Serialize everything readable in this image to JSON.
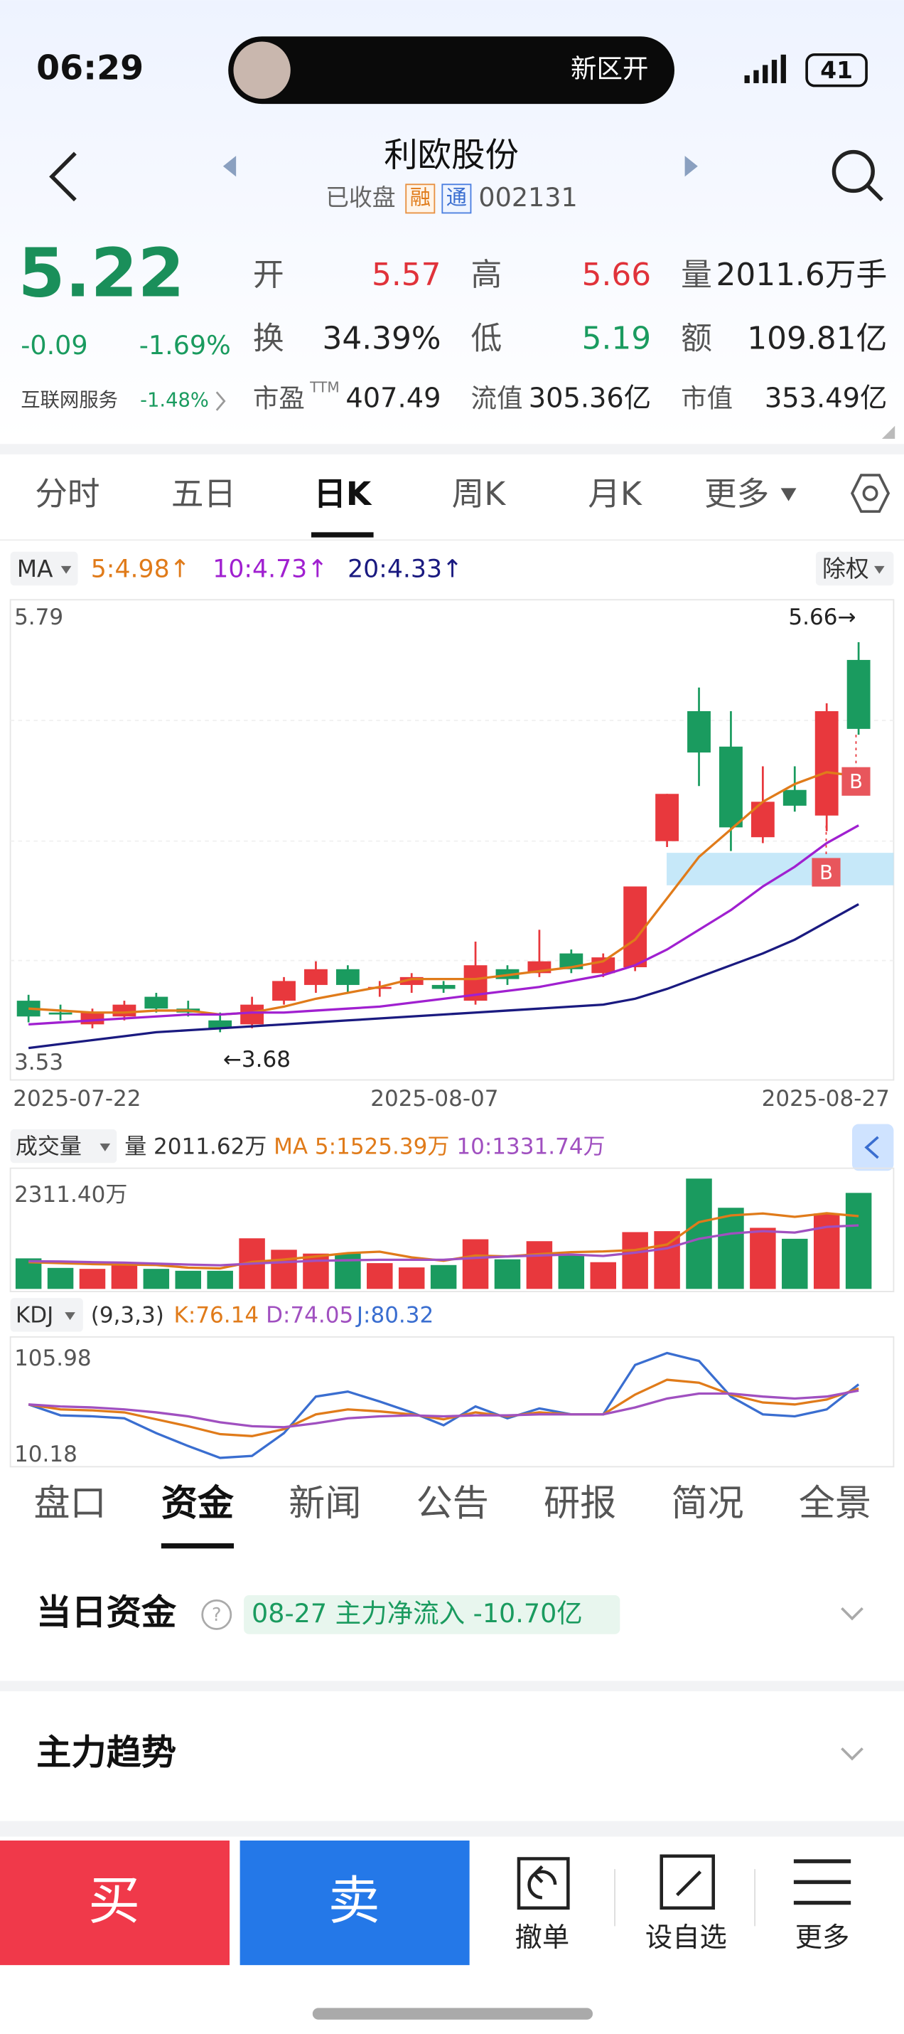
{
  "status": {
    "time": "06:29",
    "notification": "新区开",
    "battery": "41"
  },
  "header": {
    "name": "利欧股份",
    "state": "已收盘",
    "tags": [
      "融",
      "通"
    ],
    "code": "002131"
  },
  "quote": {
    "price": "5.22",
    "change": "-0.09",
    "percent": "-1.69%",
    "sector": "互联网服务",
    "sector_percent": "-1.48%",
    "fields": [
      [
        {
          "label": "开",
          "value": "5.57",
          "color": "#e0323a"
        },
        {
          "label": "高",
          "value": "5.66",
          "color": "#e0323a"
        },
        {
          "label": "量",
          "value": "2011.6万手",
          "color": "#222222"
        }
      ],
      [
        {
          "label": "换",
          "value": "34.39%",
          "color": "#222222"
        },
        {
          "label": "低",
          "value": "5.19",
          "color": "#1a9b5f"
        },
        {
          "label": "额",
          "value": "109.81亿",
          "color": "#222222"
        }
      ],
      [
        {
          "label": "市盈",
          "sup": "TTM",
          "value": "407.49",
          "color": "#222222"
        },
        {
          "label": "流值",
          "value": "305.36亿",
          "color": "#222222"
        },
        {
          "label": "市值",
          "value": "353.49亿",
          "color": "#222222"
        }
      ]
    ]
  },
  "tabs": {
    "items": [
      "分时",
      "五日",
      "日K",
      "周K",
      "月K",
      "更多"
    ],
    "active": 2
  },
  "ma_legend": {
    "label": "MA",
    "items": [
      {
        "text": "5:4.98↑",
        "color": "#e07b1a"
      },
      {
        "text": "10:4.73↑",
        "color": "#a020d0"
      },
      {
        "text": "20:4.33↑",
        "color": "#1a1a80"
      }
    ],
    "adjust": "除权"
  },
  "price_chart": {
    "ylim": [
      3.53,
      5.79
    ],
    "high_note": "5.66→",
    "low_note": "←3.68",
    "signal": "B",
    "dates": [
      "2025-07-22",
      "2025-08-07",
      "2025-08-27"
    ],
    "up_color": "#e8383d",
    "down_color": "#1a9b5f",
    "candles": [
      [
        3.84,
        3.76,
        3.87,
        3.73
      ],
      [
        3.78,
        3.77,
        3.82,
        3.74
      ],
      [
        3.72,
        3.78,
        3.8,
        3.7
      ],
      [
        3.76,
        3.82,
        3.84,
        3.74
      ],
      [
        3.86,
        3.8,
        3.88,
        3.78
      ],
      [
        3.8,
        3.78,
        3.84,
        3.76
      ],
      [
        3.74,
        3.7,
        3.78,
        3.68
      ],
      [
        3.72,
        3.82,
        3.86,
        3.7
      ],
      [
        3.84,
        3.94,
        3.96,
        3.82
      ],
      [
        3.92,
        4.0,
        4.04,
        3.88
      ],
      [
        4.0,
        3.92,
        4.02,
        3.88
      ],
      [
        3.9,
        3.91,
        3.94,
        3.86
      ],
      [
        3.92,
        3.96,
        3.98,
        3.88
      ],
      [
        3.92,
        3.9,
        3.94,
        3.88
      ],
      [
        3.84,
        4.02,
        4.14,
        3.82
      ],
      [
        4.0,
        3.95,
        4.02,
        3.92
      ],
      [
        3.98,
        4.04,
        4.2,
        3.96
      ],
      [
        4.08,
        4.0,
        4.1,
        3.98
      ],
      [
        3.98,
        4.06,
        4.08,
        3.96
      ],
      [
        4.01,
        4.42,
        4.42,
        3.99
      ],
      [
        4.65,
        4.89,
        4.89,
        4.62
      ],
      [
        5.31,
        5.1,
        5.43,
        4.93
      ],
      [
        5.13,
        4.72,
        5.31,
        4.6
      ],
      [
        4.67,
        4.85,
        5.03,
        4.64
      ],
      [
        4.91,
        4.83,
        5.03,
        4.8
      ],
      [
        4.78,
        5.31,
        5.35,
        4.7
      ],
      [
        5.57,
        5.22,
        5.66,
        5.19
      ]
    ],
    "ma5": [
      3.8,
      3.79,
      3.78,
      3.78,
      3.79,
      3.79,
      3.77,
      3.78,
      3.81,
      3.85,
      3.88,
      3.91,
      3.95,
      3.95,
      3.95,
      3.97,
      3.99,
      4.01,
      4.04,
      4.15,
      4.36,
      4.57,
      4.71,
      4.85,
      4.94,
      5.0,
      4.98
    ],
    "ma10": [
      3.72,
      3.73,
      3.74,
      3.75,
      3.76,
      3.77,
      3.77,
      3.78,
      3.78,
      3.79,
      3.8,
      3.81,
      3.83,
      3.85,
      3.87,
      3.89,
      3.91,
      3.94,
      3.97,
      4.02,
      4.1,
      4.2,
      4.3,
      4.42,
      4.52,
      4.64,
      4.73
    ],
    "ma20": [
      3.6,
      3.62,
      3.64,
      3.66,
      3.68,
      3.69,
      3.7,
      3.71,
      3.72,
      3.73,
      3.74,
      3.75,
      3.76,
      3.77,
      3.78,
      3.79,
      3.8,
      3.81,
      3.82,
      3.85,
      3.9,
      3.96,
      4.02,
      4.08,
      4.15,
      4.24,
      4.33
    ]
  },
  "volume": {
    "title": "成交量",
    "legend": "量 2011.62万",
    "ma5_label": "MA 5:1525.39万",
    "ma10_label": "10:1331.74万",
    "ylim": [
      0,
      {
        "value": 2311.4,
        "label": "2311.40万"
      }
    ],
    "values": [
      640,
      440,
      420,
      560,
      420,
      380,
      380,
      1060,
      820,
      740,
      740,
      540,
      450,
      500,
      1040,
      620,
      1000,
      700,
      560,
      1190,
      1210,
      2311.4,
      1700,
      1280,
      1050,
      1580,
      2011.62
    ],
    "ma5": [
      560,
      540,
      520,
      510,
      500,
      445,
      430,
      565,
      615,
      680,
      750,
      780,
      660,
      590,
      700,
      680,
      730,
      770,
      785,
      815,
      930,
      1400,
      1540,
      1580,
      1510,
      1585,
      1525.39
    ],
    "ma10": [
      580,
      575,
      560,
      550,
      530,
      510,
      495,
      530,
      560,
      590,
      600,
      610,
      610,
      610,
      650,
      680,
      700,
      720,
      690,
      760,
      850,
      1050,
      1160,
      1210,
      1180,
      1300,
      1331.74
    ]
  },
  "kdj": {
    "title": "KDJ",
    "params": "(9,3,3)",
    "k_label": "K:76.14",
    "d_label": "D:74.05",
    "j_label": "J:80.32",
    "ylim": [
      10.18,
      105.98
    ],
    "k": [
      60,
      55,
      54,
      52,
      45,
      38,
      30,
      28,
      35,
      50,
      55,
      53,
      50,
      45,
      52,
      48,
      52,
      50,
      50,
      70,
      85,
      82,
      70,
      62,
      60,
      65,
      76.14
    ],
    "d": [
      60,
      58,
      57,
      55,
      52,
      48,
      42,
      38,
      37,
      41,
      46,
      48,
      49,
      48,
      49,
      49,
      50,
      50,
      50,
      57,
      66,
      71,
      71,
      68,
      66,
      68,
      74.05
    ],
    "j": [
      60,
      49,
      48,
      46,
      31,
      18,
      6,
      8,
      31,
      68,
      73,
      63,
      52,
      39,
      58,
      46,
      56,
      50,
      50,
      100,
      112,
      104,
      68,
      50,
      48,
      55,
      80.32
    ]
  },
  "bottom_tabs": {
    "items": [
      "盘口",
      "资金",
      "新闻",
      "公告",
      "研报",
      "简况",
      "全景"
    ],
    "active": 1
  },
  "fund": {
    "title": "当日资金",
    "badge": "08-27 主力净流入 -10.70亿",
    "trend": "主力趋势"
  },
  "actions": {
    "buy": "买",
    "sell": "卖",
    "items": [
      "撤单",
      "设自选",
      "更多"
    ]
  }
}
